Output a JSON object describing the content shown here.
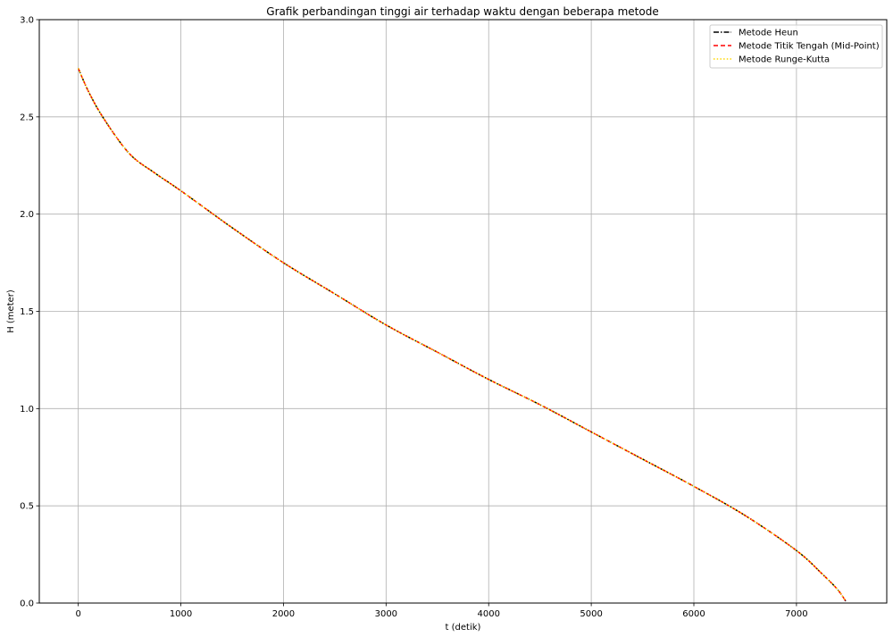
{
  "chart_data": {
    "type": "line",
    "title": "Grafik perbandingan tinggi air terhadap waktu dengan beberapa metode",
    "xlabel": "t (detik)",
    "ylabel": "H (meter)",
    "xlim": [
      -380,
      7880
    ],
    "ylim": [
      0.0,
      3.0
    ],
    "xticks": [
      0,
      1000,
      2000,
      3000,
      4000,
      5000,
      6000,
      7000
    ],
    "yticks": [
      0.0,
      0.5,
      1.0,
      1.5,
      2.0,
      2.5,
      3.0
    ],
    "xtick_labels": [
      "0",
      "1000",
      "2000",
      "3000",
      "4000",
      "5000",
      "6000",
      "7000"
    ],
    "ytick_labels": [
      "0.0",
      "0.5",
      "1.0",
      "1.5",
      "2.0",
      "2.5",
      "3.0"
    ],
    "grid": true,
    "legend_position": "top-right",
    "x": [
      0,
      100,
      250,
      500,
      750,
      1000,
      1500,
      2000,
      2500,
      3000,
      3500,
      4000,
      4500,
      5000,
      5500,
      6000,
      6500,
      7000,
      7250,
      7400,
      7480
    ],
    "series": [
      {
        "name": "Metode Heun",
        "color": "#000000",
        "style": "dashdot",
        "values": [
          2.75,
          2.63,
          2.49,
          2.31,
          2.21,
          2.12,
          1.93,
          1.75,
          1.59,
          1.43,
          1.29,
          1.15,
          1.02,
          0.88,
          0.74,
          0.6,
          0.45,
          0.27,
          0.15,
          0.07,
          0.01
        ]
      },
      {
        "name": "Metode Titik Tengah (Mid-Point)",
        "color": "#ff0000",
        "style": "dashed",
        "values": [
          2.75,
          2.63,
          2.49,
          2.31,
          2.21,
          2.12,
          1.93,
          1.75,
          1.59,
          1.43,
          1.29,
          1.15,
          1.02,
          0.88,
          0.74,
          0.6,
          0.45,
          0.27,
          0.15,
          0.07,
          0.01
        ]
      },
      {
        "name": "Metode Runge-Kutta",
        "color": "#ffd700",
        "style": "dotted",
        "values": [
          2.75,
          2.63,
          2.49,
          2.31,
          2.21,
          2.12,
          1.93,
          1.75,
          1.59,
          1.43,
          1.29,
          1.15,
          1.02,
          0.88,
          0.74,
          0.6,
          0.45,
          0.27,
          0.15,
          0.07,
          0.01
        ]
      }
    ]
  }
}
